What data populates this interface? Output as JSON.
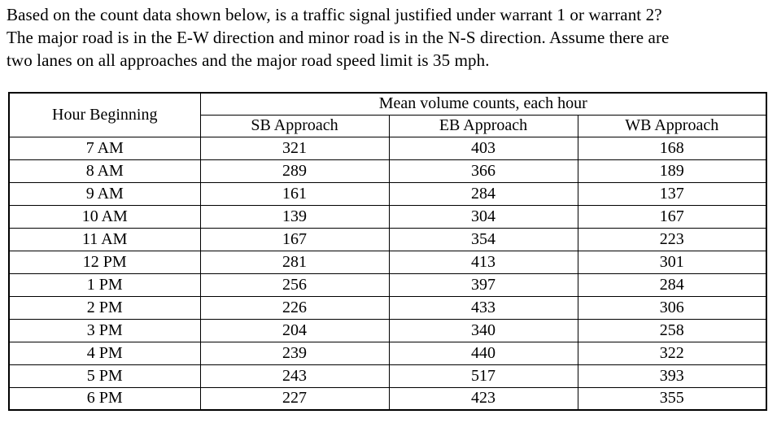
{
  "question": {
    "lines": [
      "Based on the count data shown below, is a traffic signal justified under warrant 1 or warrant 2?",
      "The major road is in the E-W direction and minor road is in the N-S direction. Assume there are",
      "two lanes on all approaches and the major road speed limit is 35 mph."
    ]
  },
  "table": {
    "corner_header": "Hour Beginning",
    "group_header": "Mean volume counts, each hour",
    "column_headers": [
      "SB Approach",
      "EB Approach",
      "WB Approach"
    ],
    "rows": [
      {
        "hour": "7 AM",
        "sb": "321",
        "eb": "403",
        "wb": "168"
      },
      {
        "hour": "8 AM",
        "sb": "289",
        "eb": "366",
        "wb": "189"
      },
      {
        "hour": "9 AM",
        "sb": "161",
        "eb": "284",
        "wb": "137"
      },
      {
        "hour": "10 AM",
        "sb": "139",
        "eb": "304",
        "wb": "167"
      },
      {
        "hour": "11 AM",
        "sb": "167",
        "eb": "354",
        "wb": "223"
      },
      {
        "hour": "12 PM",
        "sb": "281",
        "eb": "413",
        "wb": "301"
      },
      {
        "hour": "1 PM",
        "sb": "256",
        "eb": "397",
        "wb": "284"
      },
      {
        "hour": "2 PM",
        "sb": "226",
        "eb": "433",
        "wb": "306"
      },
      {
        "hour": "3 PM",
        "sb": "204",
        "eb": "340",
        "wb": "258"
      },
      {
        "hour": "4 PM",
        "sb": "239",
        "eb": "440",
        "wb": "322"
      },
      {
        "hour": "5 PM",
        "sb": "243",
        "eb": "517",
        "wb": "393"
      },
      {
        "hour": "6 PM",
        "sb": "227",
        "eb": "423",
        "wb": "355"
      }
    ]
  },
  "colors": {
    "background": "#ffffff",
    "text": "#000000",
    "border": "#000000"
  }
}
